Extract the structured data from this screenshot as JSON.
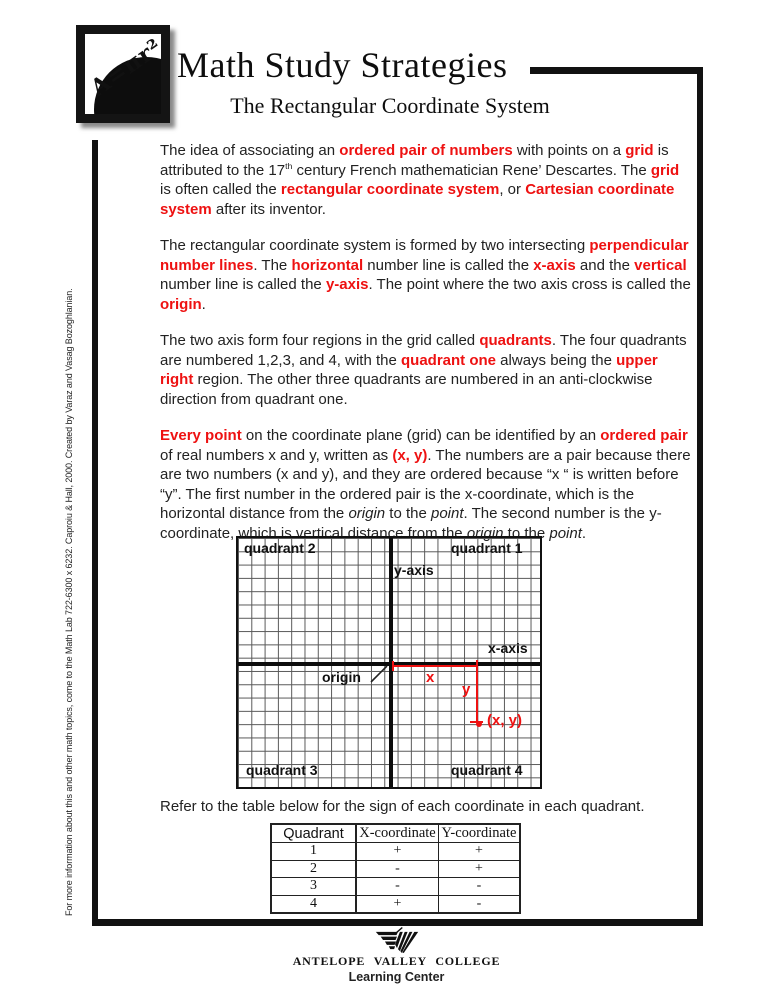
{
  "header": {
    "logo_text": "A=πr²",
    "title": "Math Study Strategies",
    "subtitle": "The Rectangular Coordinate System"
  },
  "sidebar": {
    "note": "For more information about this and other math topics, come to the Math Lab 722-6300 x 6232.  Caproiu & Hall, 2000.  Created by Varaz and Vasag Bozoghlanian."
  },
  "paragraphs": [
    [
      {
        "t": "The idea of associating an "
      },
      {
        "t": "ordered pair of numbers",
        "s": "red"
      },
      {
        "t": " with points on a "
      },
      {
        "t": "grid",
        "s": "red"
      },
      {
        "t": " is attributed to the 17"
      },
      {
        "t": "th",
        "s": "sup"
      },
      {
        "t": " century French mathematician Rene’ Descartes. The "
      },
      {
        "t": "grid",
        "s": "red"
      },
      {
        "t": " is often called the "
      },
      {
        "t": "rectangular coordinate system",
        "s": "red"
      },
      {
        "t": ", or "
      },
      {
        "t": "Cartesian coordinate system",
        "s": "red"
      },
      {
        "t": " after its inventor."
      }
    ],
    [
      {
        "t": "The rectangular coordinate system is formed by two intersecting "
      },
      {
        "t": "perpendicular number lines",
        "s": "red"
      },
      {
        "t": ". The "
      },
      {
        "t": "horizontal",
        "s": "red"
      },
      {
        "t": " number line is called the "
      },
      {
        "t": "x-axis",
        "s": "red"
      },
      {
        "t": " and the "
      },
      {
        "t": "vertical",
        "s": "red"
      },
      {
        "t": " number line is called the "
      },
      {
        "t": "y-axis",
        "s": "red"
      },
      {
        "t": ". The point where the two axis cross is called the "
      },
      {
        "t": "origin",
        "s": "red"
      },
      {
        "t": "."
      }
    ],
    [
      {
        "t": "The two axis form four regions in the grid called "
      },
      {
        "t": "quadrants",
        "s": "red"
      },
      {
        "t": ".  The four quadrants are numbered 1,2,3, and 4, with the "
      },
      {
        "t": "quadrant one",
        "s": "red"
      },
      {
        "t": " always being the "
      },
      {
        "t": "upper right",
        "s": "red"
      },
      {
        "t": " region. The other three quadrants are numbered in an anti-clockwise direction from quadrant one."
      }
    ],
    [
      {
        "t": "Every point",
        "s": "red"
      },
      {
        "t": " on the coordinate plane (grid) can be identified by an "
      },
      {
        "t": "ordered pair",
        "s": "red"
      },
      {
        "t": " of real numbers x and y, written as "
      },
      {
        "t": "(x, y)",
        "s": "red"
      },
      {
        "t": ".  The numbers are a pair because there are two numbers (x and y), and they are ordered because “x “ is  written before “y”.  The first number in the  ordered pair is the x-coordinate, which is the horizontal distance  from the "
      },
      {
        "t": "origin",
        "s": "it"
      },
      {
        "t": " to the "
      },
      {
        "t": "point",
        "s": "it"
      },
      {
        "t": ". The second number is the y-coordinate, which is vertical distance from the "
      },
      {
        "t": "origin",
        "s": "it"
      },
      {
        "t": " to the "
      },
      {
        "t": "point",
        "s": "it"
      },
      {
        "t": "."
      }
    ]
  ],
  "diagram": {
    "quadrant_2": "quadrant 2",
    "quadrant_1": "quadrant 1",
    "quadrant_3": "quadrant 3",
    "quadrant_4": "quadrant 4",
    "y_axis": "y-axis",
    "x_axis": "x-axis",
    "origin": "origin",
    "x_dist": "x",
    "y_dist": "y",
    "point": "(x, y)"
  },
  "table_section": {
    "intro": "Refer to the table below for the sign of each coordinate in each quadrant.",
    "headers": [
      "Quadrant",
      "X-coordinate",
      "Y-coordinate"
    ],
    "rows": [
      [
        "1",
        "+",
        "+"
      ],
      [
        "2",
        "-",
        "+"
      ],
      [
        "3",
        "-",
        "-"
      ],
      [
        "4",
        "+",
        "-"
      ]
    ]
  },
  "footer": {
    "college": "ANTELOPE VALLEY COLLEGE",
    "center": "Learning Center"
  },
  "colors": {
    "accent_red": "#ee1111",
    "ink": "#1c1c1c"
  }
}
